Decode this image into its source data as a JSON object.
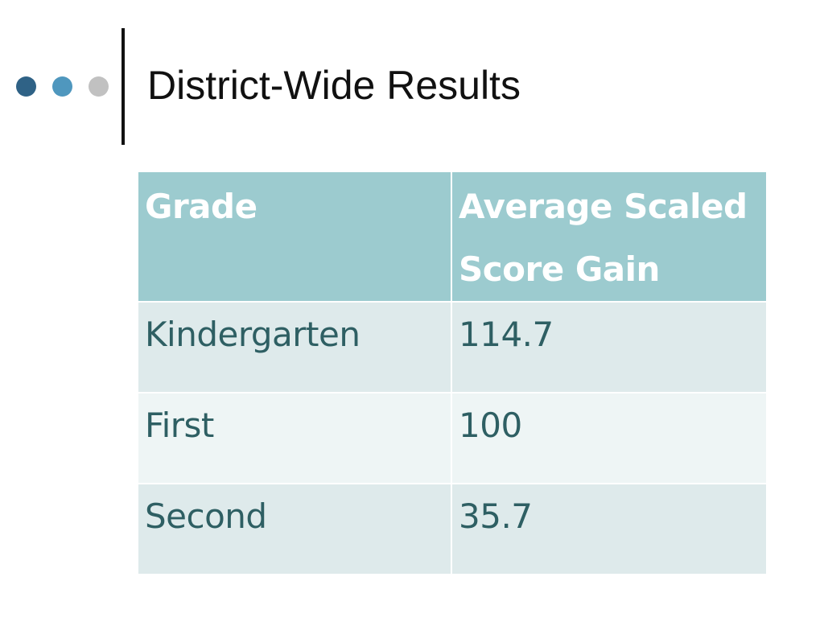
{
  "slide": {
    "title": "District-Wide Results",
    "bullet_dots": [
      {
        "name": "dot-dark",
        "color": "#2f6286"
      },
      {
        "name": "dot-medium",
        "color": "#4f97be"
      },
      {
        "name": "dot-light",
        "color": "#c1c1c1"
      }
    ]
  },
  "table": {
    "columns": [
      "Grade",
      "Average Scaled Score Gain"
    ],
    "rows": [
      [
        "Kindergarten",
        "114.7"
      ],
      [
        "First",
        "100"
      ],
      [
        "Second",
        "35.7"
      ]
    ],
    "colors": {
      "header_bg": "#9ccbcf",
      "header_text": "#ffffff",
      "row_odd_bg": "#deeaeb",
      "row_even_bg": "#eef5f5",
      "body_text": "#2e5f63"
    }
  }
}
